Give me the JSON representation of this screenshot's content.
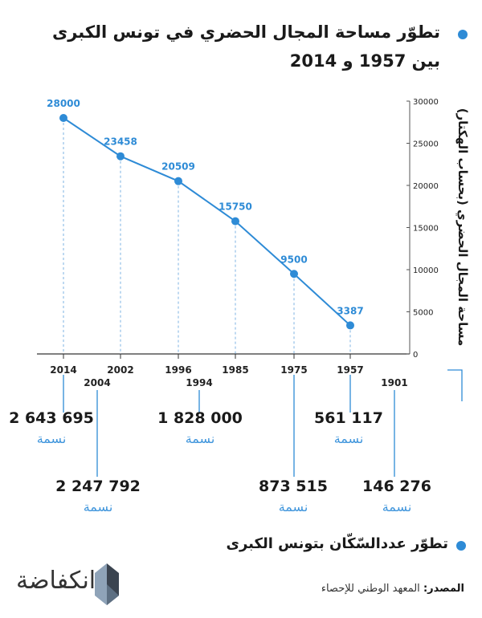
{
  "header": {
    "title_line1": "تطوّر مساحة المجال الحضري في تونس الكبرى",
    "title_line2": "بين 1957 و 2014"
  },
  "colors": {
    "accent": "#2e8bd6",
    "accent_light": "#3f95dc",
    "text": "#1a1a1a",
    "logo_dark": "#3b4450",
    "logo_light": "#8fa3b8"
  },
  "chart_data": {
    "type": "line",
    "title": "تطوّر مساحة المجال الحضري في تونس الكبرى بين 1957 و 2014",
    "ylabel": "مساحة المجال الحضري (بحساب الهكتار)",
    "xlabel": "",
    "ylim": [
      0,
      30000
    ],
    "yticks": [
      "0",
      "5000",
      "10000",
      "15000",
      "20000",
      "25000",
      "30000"
    ],
    "grid": false,
    "categories": [
      "2014",
      "2002",
      "1996",
      "1985",
      "1975",
      "1957"
    ],
    "series": [
      {
        "name": "مساحة المجال الحضري",
        "values": [
          28000,
          23458,
          20509,
          15750,
          9500,
          3387
        ]
      }
    ],
    "data_labels": [
      "28000",
      "23458",
      "20509",
      "15750",
      "9500",
      "3387"
    ]
  },
  "population": {
    "title": "تطوّر عددالسّكّان بتونس الكبرى",
    "unit": "نسمة",
    "items": [
      {
        "year": "2014",
        "value": "2 643 695"
      },
      {
        "year": "2004",
        "value": "2 247 792"
      },
      {
        "year": "1994",
        "value": "1 828 000"
      },
      {
        "year": "1975",
        "value": "873 515"
      },
      {
        "year": "1957",
        "value": "561 117"
      },
      {
        "year": "1901",
        "value": "146 276"
      }
    ]
  },
  "footer": {
    "source_label": "المصدر:",
    "source_text": "المعهد الوطني للإحصاء",
    "logo_text": "انكفاضة"
  }
}
